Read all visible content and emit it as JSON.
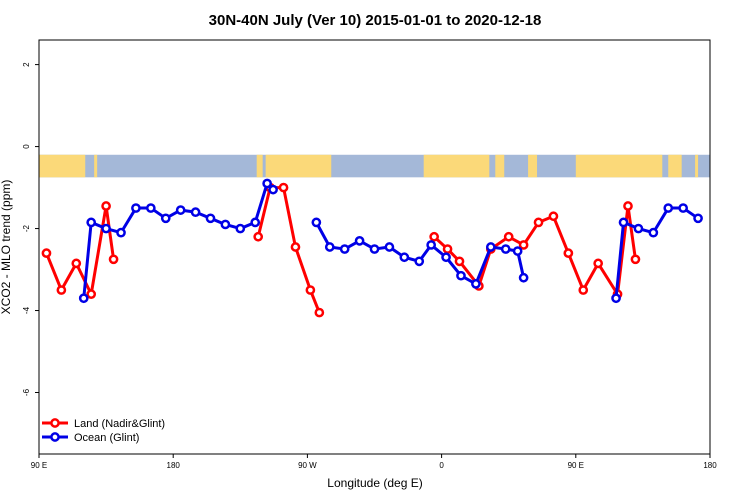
{
  "chart_data": {
    "type": "line",
    "title": "30N-40N July (Ver 10)   2015-01-01 to 2020-12-18",
    "xlabel": "Longitude (deg E)",
    "ylabel": "XCO2 - MLO trend (ppm)",
    "xlim": [
      90,
      540
    ],
    "ylim": [
      -7.5,
      2.6
    ],
    "x_ticks": [
      {
        "value": 90,
        "label": "90 E"
      },
      {
        "value": 180,
        "label": "180"
      },
      {
        "value": 270,
        "label": "90 W"
      },
      {
        "value": 360,
        "label": "0"
      },
      {
        "value": 450,
        "label": "90 E"
      },
      {
        "value": 540,
        "label": "180"
      }
    ],
    "y_ticks": [
      {
        "value": 2,
        "label": "2"
      },
      {
        "value": 0,
        "label": "0"
      },
      {
        "value": -2,
        "label": "-2"
      },
      {
        "value": -4,
        "label": "-4"
      },
      {
        "value": -6,
        "label": "-6"
      }
    ],
    "land_band": {
      "y_top": -0.2,
      "y_bottom": -0.75,
      "ocean_color": "#a4b8d8",
      "land_color": "#fbd979"
    },
    "land_segments_longitude": [
      [
        90,
        121
      ],
      [
        127,
        129
      ],
      [
        236,
        240
      ],
      [
        242,
        286
      ],
      [
        348,
        392
      ],
      [
        396,
        402
      ],
      [
        418,
        424
      ],
      [
        450,
        508
      ],
      [
        512,
        521
      ],
      [
        530,
        532
      ]
    ],
    "legend": {
      "position": "bottom-left"
    },
    "series": [
      {
        "name": "Land (Nadir&Glint)",
        "color": "#ff0000",
        "segments": [
          [
            [
              95,
              -2.6
            ],
            [
              105,
              -3.5
            ],
            [
              115,
              -2.85
            ],
            [
              125,
              -3.6
            ],
            [
              135,
              -1.45
            ],
            [
              140,
              -2.75
            ]
          ],
          [
            [
              237,
              -2.2
            ],
            [
              245,
              -1.0
            ],
            [
              254,
              -1.0
            ],
            [
              262,
              -2.45
            ],
            [
              272,
              -3.5
            ],
            [
              278,
              -4.05
            ]
          ],
          [
            [
              355,
              -2.2
            ],
            [
              364,
              -2.5
            ],
            [
              372,
              -2.8
            ],
            [
              385,
              -3.4
            ],
            [
              393,
              -2.5
            ],
            [
              405,
              -2.2
            ],
            [
              415,
              -2.4
            ],
            [
              425,
              -1.85
            ],
            [
              435,
              -1.7
            ],
            [
              445,
              -2.6
            ],
            [
              455,
              -3.5
            ],
            [
              465,
              -2.85
            ],
            [
              478,
              -3.6
            ],
            [
              485,
              -1.45
            ],
            [
              490,
              -2.75
            ]
          ]
        ]
      },
      {
        "name": "Ocean (Glint)",
        "color": "#0000e6",
        "segments": [
          [
            [
              120,
              -3.7
            ],
            [
              125,
              -1.85
            ],
            [
              135,
              -2.0
            ],
            [
              145,
              -2.1
            ],
            [
              155,
              -1.5
            ],
            [
              165,
              -1.5
            ],
            [
              175,
              -1.75
            ],
            [
              185,
              -1.55
            ],
            [
              195,
              -1.6
            ],
            [
              205,
              -1.75
            ],
            [
              215,
              -1.9
            ],
            [
              225,
              -2.0
            ],
            [
              235,
              -1.85
            ],
            [
              243,
              -0.9
            ],
            [
              247,
              -1.05
            ]
          ],
          [
            [
              276,
              -1.85
            ],
            [
              285,
              -2.45
            ],
            [
              295,
              -2.5
            ],
            [
              305,
              -2.3
            ],
            [
              315,
              -2.5
            ],
            [
              325,
              -2.45
            ],
            [
              335,
              -2.7
            ],
            [
              345,
              -2.8
            ],
            [
              353,
              -2.4
            ],
            [
              363,
              -2.7
            ],
            [
              373,
              -3.15
            ],
            [
              383,
              -3.35
            ],
            [
              393,
              -2.45
            ],
            [
              403,
              -2.5
            ],
            [
              411,
              -2.55
            ],
            [
              415,
              -3.2
            ]
          ],
          [
            [
              477,
              -3.7
            ],
            [
              482,
              -1.85
            ],
            [
              492,
              -2.0
            ],
            [
              502,
              -2.1
            ],
            [
              512,
              -1.5
            ],
            [
              522,
              -1.5
            ],
            [
              532,
              -1.75
            ]
          ]
        ]
      }
    ]
  }
}
